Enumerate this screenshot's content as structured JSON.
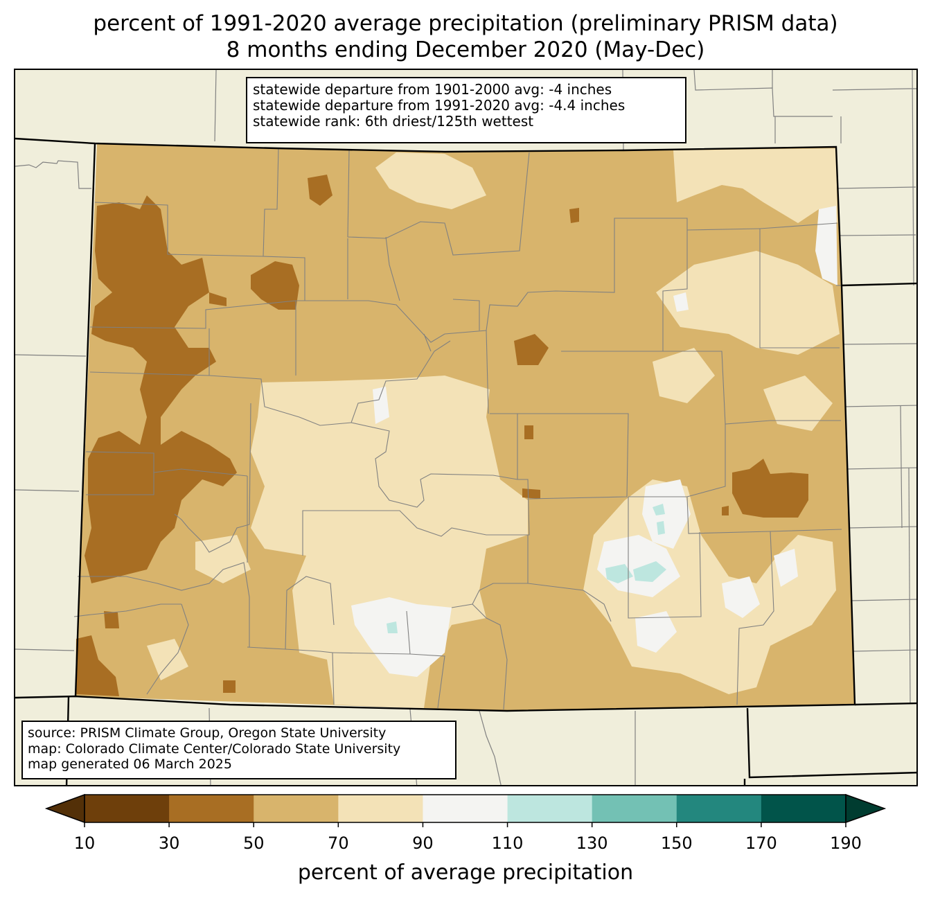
{
  "title": {
    "line1": "percent of 1991-2020 average precipitation (preliminary PRISM data)",
    "line2": "8 months ending December 2020 (May-Dec)"
  },
  "stats": {
    "line1": "statewide departure from 1901-2000 avg: -4 inches",
    "line2": "statewide departure from 1991-2020 avg: -4.4 inches",
    "line3": "statewide rank: 6th driest/125th wettest"
  },
  "credits": {
    "line1": "source: PRISM Climate Group, Oregon State University",
    "line2": "map: Colorado Climate Center/Colorado State University",
    "line3": "map generated 06 March 2025"
  },
  "legend": {
    "label": "percent of average precipitation",
    "ticks": [
      "10",
      "30",
      "50",
      "70",
      "90",
      "110",
      "130",
      "150",
      "170",
      "190"
    ],
    "bins": [
      {
        "range": [
          10,
          30
        ],
        "color": "#6e3f0b"
      },
      {
        "range": [
          30,
          50
        ],
        "color": "#a86e23"
      },
      {
        "range": [
          50,
          70
        ],
        "color": "#d8b46c"
      },
      {
        "range": [
          70,
          90
        ],
        "color": "#f3e2b7"
      },
      {
        "range": [
          90,
          110
        ],
        "color": "#f4f4f2"
      },
      {
        "range": [
          110,
          130
        ],
        "color": "#bde6df"
      },
      {
        "range": [
          130,
          150
        ],
        "color": "#73c1b4"
      },
      {
        "range": [
          150,
          170
        ],
        "color": "#23877e"
      },
      {
        "range": [
          170,
          190
        ],
        "color": "#01544a"
      }
    ],
    "under_color": "#533008",
    "over_color": "#003c30"
  },
  "colors": {
    "background": "#f0eedb",
    "county_lines": "#808080",
    "state_lines": "#000000"
  }
}
